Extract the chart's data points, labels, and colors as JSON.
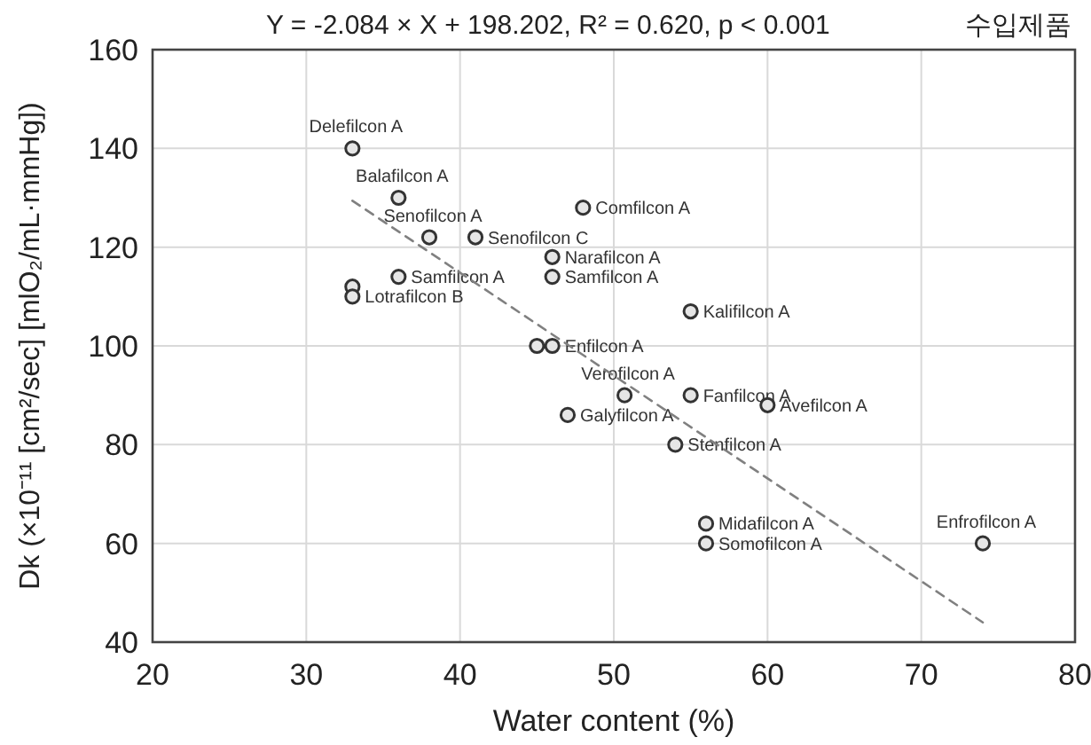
{
  "chart_data": {
    "type": "scatter",
    "title": "Y  = -2.084 × X + 198.202, R² = 0.620, p < 0.001",
    "subtitle": "수입제품",
    "xlabel": "Water content (%)",
    "ylabel": "Dk (×10⁻¹¹ [cm²/sec] [mlO₂/mL·mmHg])",
    "xlim": [
      20,
      80
    ],
    "ylim": [
      40,
      160
    ],
    "xticks": [
      20,
      30,
      40,
      50,
      60,
      70,
      80
    ],
    "yticks": [
      40,
      60,
      80,
      100,
      120,
      140,
      160
    ],
    "grid": true,
    "marker": "circle",
    "series": [
      {
        "color": "#333333",
        "x": [
          33,
          36,
          38,
          41,
          48,
          46,
          46,
          36,
          33,
          33,
          45,
          46,
          55,
          50.7,
          55,
          60,
          47,
          54,
          56,
          56,
          74
        ],
        "values": [
          140,
          130,
          122,
          122,
          128,
          118,
          114,
          114,
          112,
          110,
          100,
          100,
          107,
          90,
          90,
          88,
          86,
          80,
          64,
          60,
          60
        ],
        "value_labels": [
          "Delefilcon A",
          "Balafilcon A",
          "Senofilcon A",
          "Senofilcon C",
          "Comfilcon A",
          "Narafilcon A",
          "Samfilcon A",
          "Samfilcon A",
          null,
          "Lotrafilcon B",
          null,
          "Enfilcon A",
          "Kalifilcon A",
          "Verofilcon A",
          "Fanfilcon A",
          "Avefilcon A",
          "Galyfilcon A",
          "Stenfilcon A",
          "Midafilcon A",
          "Somofilcon A",
          "Enfrofilcon A"
        ]
      },
      {
        "type": "line",
        "color": "#808080",
        "line_style": "dashed",
        "marker": "none",
        "x": [
          33,
          74
        ],
        "values": [
          129.4,
          44
        ]
      }
    ]
  }
}
